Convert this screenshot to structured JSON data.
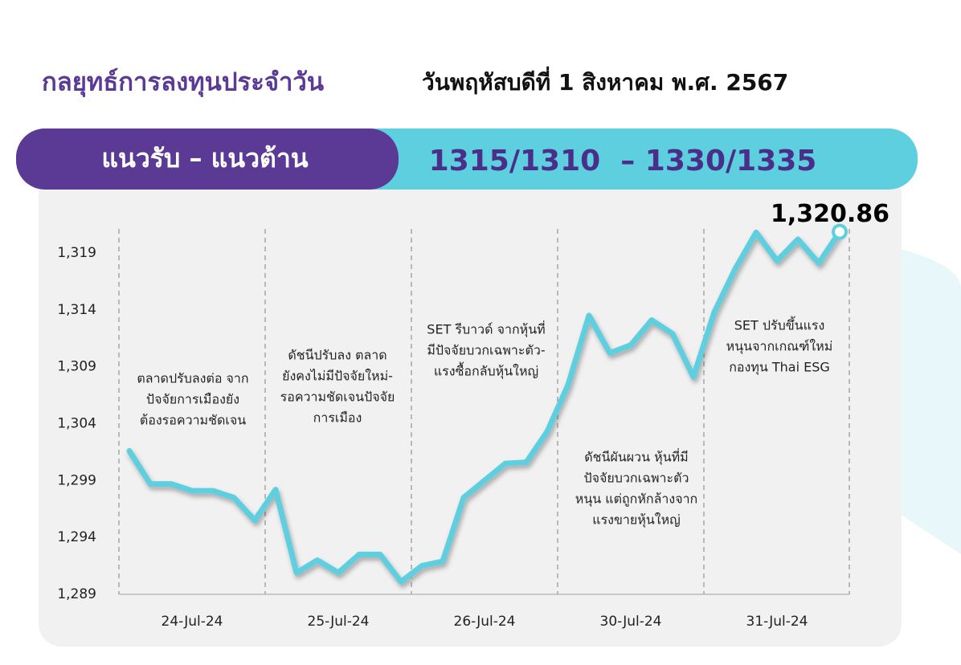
{
  "header": {
    "title": "กลยุทธ์การลงทุนประจำวัน",
    "date": "วันพฤหัสบดีที่ 1 สิงหาคม พ.ศ. 2567"
  },
  "banner": {
    "label": "แนวรับ – แนวต้าน",
    "levels": "1315/1310  – 1330/1335"
  },
  "chart_data": {
    "type": "line",
    "categories": [
      null,
      null,
      null,
      "24-Jul-24",
      null,
      null,
      null,
      null,
      null,
      null,
      "25-Jul-24",
      null,
      null,
      null,
      null,
      null,
      null,
      "26-Jul-24",
      null,
      null,
      null,
      null,
      null,
      null,
      "30-Jul-24",
      null,
      null,
      null,
      null,
      null,
      null,
      "31-Jul-24",
      null,
      null,
      null
    ],
    "values": [
      1301.6,
      1298.7,
      1298.7,
      1298.1,
      1298.1,
      1297.5,
      1295.5,
      1298.2,
      1290.9,
      1292.0,
      1290.9,
      1292.5,
      1292.5,
      1290.1,
      1291.5,
      1291.9,
      1297.5,
      1299.0,
      1300.5,
      1300.6,
      1303.3,
      1307.4,
      1313.5,
      1310.2,
      1310.9,
      1313.1,
      1311.9,
      1308.1,
      1313.8,
      1317.6,
      1320.8,
      1318.3,
      1320.2,
      1318.1,
      1320.86
    ],
    "value_labels": [
      null,
      null,
      null,
      null,
      null,
      null,
      null,
      null,
      null,
      null,
      null,
      null,
      null,
      null,
      null,
      null,
      null,
      null,
      null,
      null,
      null,
      null,
      null,
      null,
      null,
      null,
      null,
      null,
      null,
      null,
      null,
      null,
      null,
      null,
      "1,320.86"
    ],
    "color": "#5ecfdf",
    "ylim": [
      1289,
      1321
    ],
    "yticks": [
      {
        "value": 1289,
        "label": "1,289"
      },
      {
        "value": 1294,
        "label": "1,294"
      },
      {
        "value": 1299,
        "label": "1,299"
      },
      {
        "value": 1304,
        "label": "1,304"
      },
      {
        "value": 1309,
        "label": "1,309"
      },
      {
        "value": 1314,
        "label": "1,314"
      },
      {
        "value": 1319,
        "label": "1,319"
      }
    ],
    "annotations": [
      {
        "lines": [
          "ตลาดปรับลงต่อ จาก",
          "ปัจจัยการเมืองยัง",
          "ต้องรอความชัดเจน"
        ]
      },
      {
        "lines": [
          "ดัชนีปรับลง ตลาด",
          "ยังคงไม่มีปัจจัยใหม่-",
          "รอความชัดเจนปัจจัย",
          "การเมือง"
        ]
      },
      {
        "lines": [
          "SET รีบาวด์ จากหุ้นที่",
          "มีปัจจัยบวกเฉพาะตัว-",
          "แรงซื้อกลับหุ้นใหญ่"
        ]
      },
      {
        "lines": [
          "ดัชนีผันผวน หุ้นที่มี",
          "ปัจจัยบวกเฉพาะตัว",
          "หนุน แต่ถูกหักล้างจาก",
          "แรงขายหุ้นใหญ่"
        ]
      },
      {
        "lines": [
          "SET ปรับขึ้นแรง",
          "หนุนจากเกณฑ์ใหม่",
          "กองทุน Thai ESG"
        ]
      }
    ]
  }
}
